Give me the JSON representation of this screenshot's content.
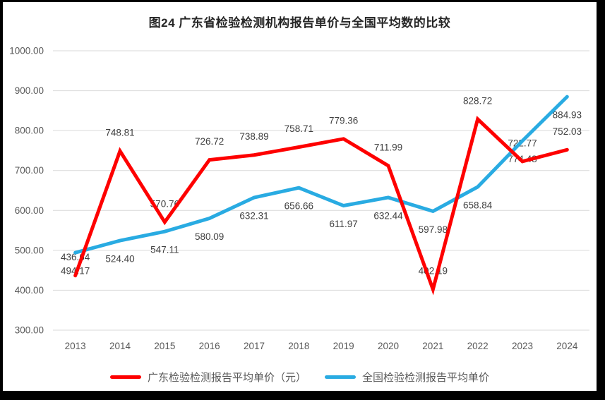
{
  "chart_data": {
    "type": "line",
    "title": "图24  广东省检验检测机构报告单价与全国平均数的比较",
    "categories": [
      "2013",
      "2014",
      "2015",
      "2016",
      "2017",
      "2018",
      "2019",
      "2020",
      "2021",
      "2022",
      "2023",
      "2024"
    ],
    "series": [
      {
        "name": "广东检验检测报告平均单价（元）",
        "color": "#FE0000",
        "label_position": "above",
        "values": [
          436.64,
          748.81,
          570.76,
          726.72,
          738.89,
          758.71,
          779.36,
          711.99,
          402.19,
          828.72,
          722.77,
          752.03
        ]
      },
      {
        "name": "全国检验检测报告平均单价",
        "color": "#29ABE2",
        "label_position": "below",
        "values": [
          494.17,
          524.4,
          547.11,
          580.09,
          632.31,
          656.66,
          611.97,
          632.44,
          597.98,
          658.84,
          774.48,
          884.93
        ]
      }
    ],
    "ylim": [
      300,
      1000
    ],
    "y_ticks": [
      1000,
      900,
      800,
      700,
      600,
      500,
      400,
      300
    ],
    "tick_decimals": 2,
    "grid": true,
    "legend_position": "bottom",
    "data_labels": true,
    "colors": {
      "grid": "#D9D9D9",
      "axis_text": "#595959",
      "data_label_text": "#404040",
      "title_text": "#262626",
      "background": "#FFFFFF",
      "frame": "#000000"
    }
  }
}
